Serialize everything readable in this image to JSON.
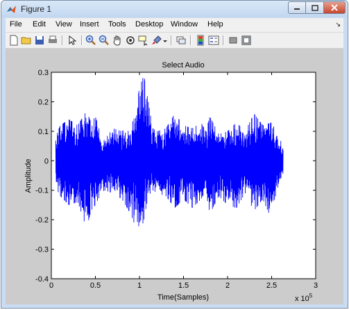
{
  "window": {
    "title": "Figure 1"
  },
  "menu": {
    "items": [
      "File",
      "Edit",
      "View",
      "Insert",
      "Tools",
      "Desktop",
      "Window",
      "Help"
    ]
  },
  "toolbar": {
    "icons": [
      "new-figure-icon",
      "open-file-icon",
      "save-icon",
      "print-icon",
      "edit-plot-icon",
      "zoom-in-icon",
      "zoom-out-icon",
      "pan-icon",
      "rotate-3d-icon",
      "data-cursor-icon",
      "brush-icon",
      "brush-dropdown-icon",
      "link-plot-icon",
      "insert-colorbar-icon",
      "insert-legend-icon",
      "hide-plot-tools-icon",
      "show-plot-tools-icon"
    ]
  },
  "colors": {
    "series": "#0000ff",
    "figure_background": "#cccccc",
    "axes_background": "#ffffff"
  },
  "chart_data": {
    "type": "line",
    "title": "Select Audio",
    "xlabel": "Time(Samples)",
    "ylabel": "Amplitude",
    "xlim": [
      0,
      3
    ],
    "ylim": [
      -0.4,
      0.3
    ],
    "x_scale_label": "x 10",
    "x_scale_exponent": "5",
    "xticks": [
      "0",
      "0.5",
      "1",
      "1.5",
      "2",
      "2.5",
      "3"
    ],
    "yticks": [
      "-0.4",
      "-0.3",
      "-0.2",
      "-0.1",
      "0",
      "0.1",
      "0.2",
      "0.3"
    ],
    "grid": false,
    "legend": "none",
    "signal_end_x": 2.63,
    "envelope": {
      "x": [
        0.05,
        0.1,
        0.2,
        0.3,
        0.4,
        0.45,
        0.5,
        0.55,
        0.6,
        0.7,
        0.8,
        0.9,
        0.95,
        1.0,
        1.05,
        1.1,
        1.15,
        1.2,
        1.3,
        1.4,
        1.5,
        1.6,
        1.7,
        1.75,
        1.8,
        1.9,
        2.0,
        2.1,
        2.2,
        2.3,
        2.4,
        2.5,
        2.55,
        2.6,
        2.63
      ],
      "upper": [
        0.08,
        0.12,
        0.14,
        0.12,
        0.17,
        0.13,
        0.15,
        0.1,
        0.07,
        0.11,
        0.1,
        0.12,
        0.15,
        0.25,
        0.29,
        0.2,
        0.11,
        0.1,
        0.11,
        0.16,
        0.12,
        0.11,
        0.13,
        0.1,
        0.15,
        0.09,
        0.1,
        0.13,
        0.1,
        0.16,
        0.12,
        0.13,
        0.1,
        0.07,
        0.05
      ],
      "lower": [
        -0.09,
        -0.12,
        -0.15,
        -0.14,
        -0.23,
        -0.17,
        -0.15,
        -0.12,
        -0.1,
        -0.11,
        -0.13,
        -0.18,
        -0.22,
        -0.26,
        -0.2,
        -0.12,
        -0.1,
        -0.11,
        -0.12,
        -0.16,
        -0.13,
        -0.16,
        -0.13,
        -0.1,
        -0.18,
        -0.12,
        -0.15,
        -0.16,
        -0.11,
        -0.17,
        -0.13,
        -0.2,
        -0.13,
        -0.06,
        -0.05
      ]
    }
  }
}
